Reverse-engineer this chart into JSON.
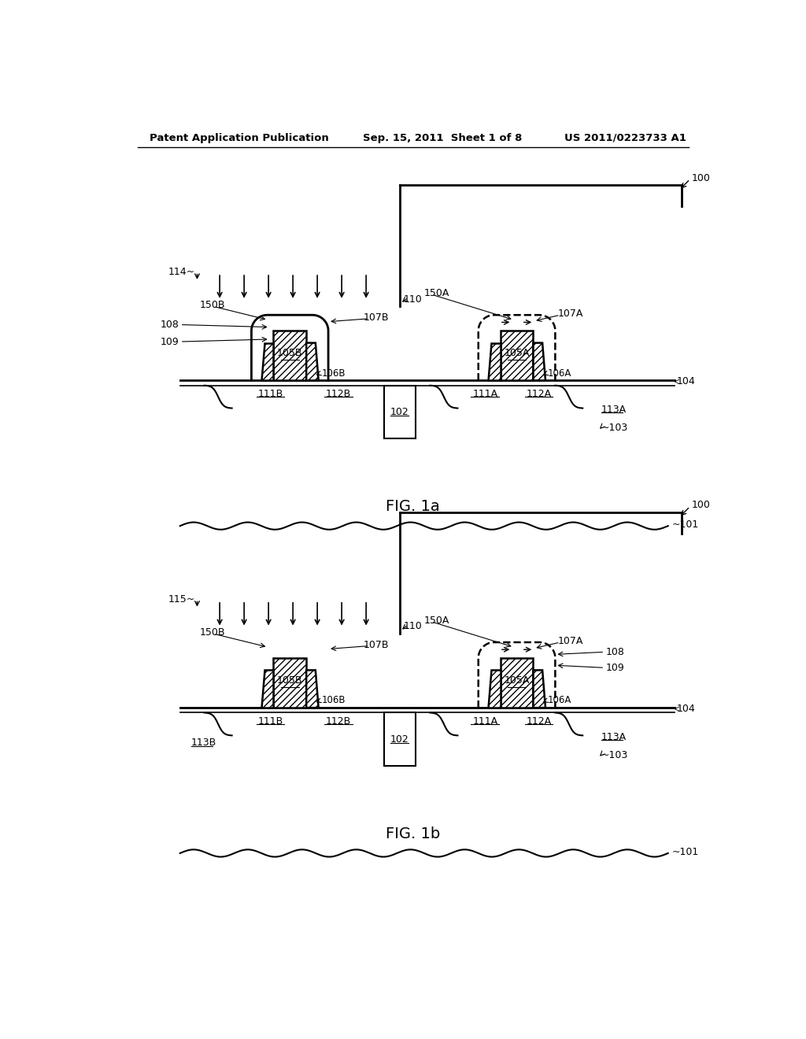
{
  "header_left": "Patent Application Publication",
  "header_mid": "Sep. 15, 2011  Sheet 1 of 8",
  "header_right": "US 2011/0223733 A1",
  "fig1a_label": "FIG. 1a",
  "fig1b_label": "FIG. 1b",
  "bg_color": "#ffffff",
  "line_color": "#000000"
}
